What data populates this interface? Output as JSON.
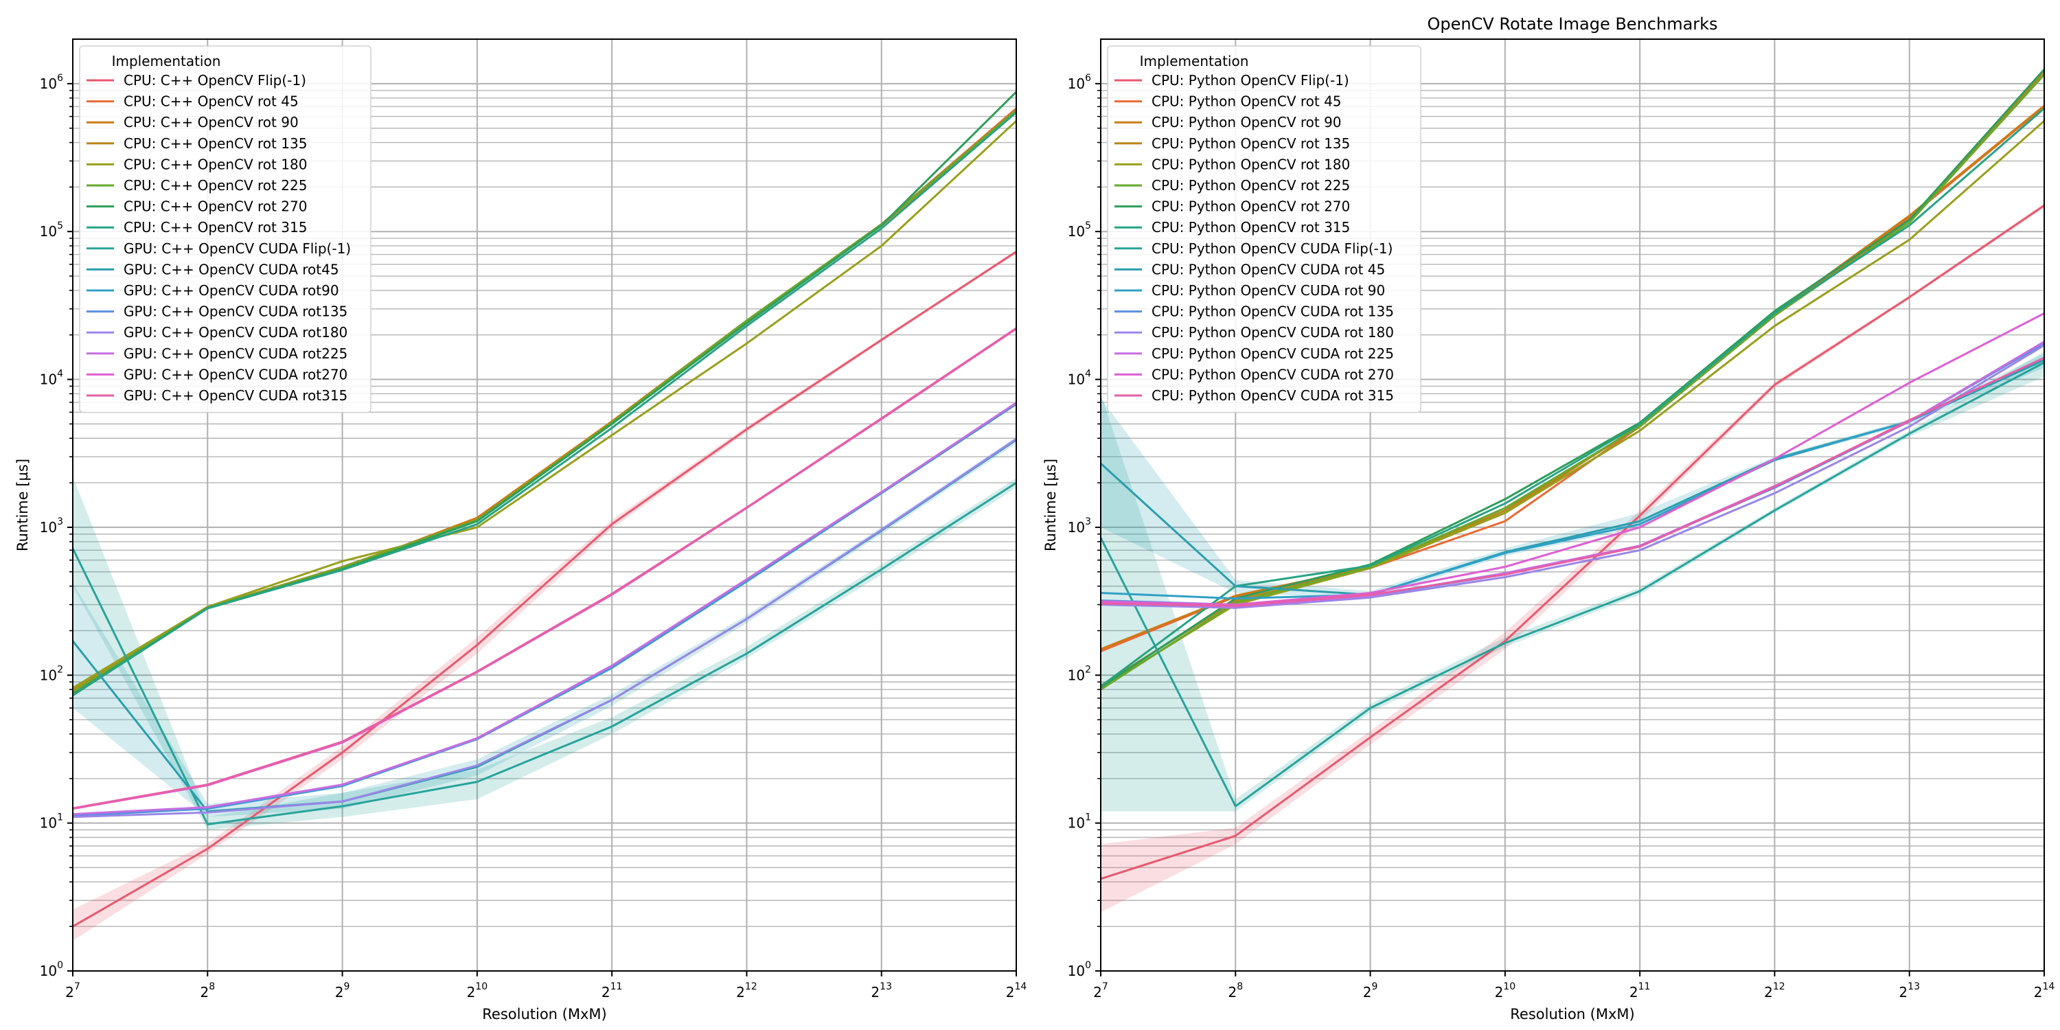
{
  "figure": {
    "title": "OpenCV Rotate Image Benchmarks"
  },
  "colors": {
    "cpu_flip": "#e8596f",
    "cpu_rot45": "#ea6a34",
    "cpu_rot90": "#cc7b16",
    "cpu_rot135": "#b8861e",
    "cpu_rot180": "#98a01c",
    "cpu_rot225": "#6aa82c",
    "cpu_rot270": "#2e9e5a",
    "cpu_rot315": "#28a383",
    "gpu_flip": "#28a39b",
    "gpu_rot45": "#2a9fae",
    "gpu_rot90": "#31a0c6",
    "gpu_rot135": "#5b8fe0",
    "gpu_rot180": "#9a85e8",
    "gpu_rot225": "#c66ee0",
    "gpu_rot270": "#de5fd3",
    "gpu_rot315": "#e65fa4"
  },
  "chart_data": [
    {
      "type": "line",
      "title": "",
      "xlabel": "Resolution (MxM)",
      "ylabel": "Runtime [µs]",
      "xscale": "log2",
      "yscale": "log10",
      "xlim": [
        128,
        16384
      ],
      "ylim": [
        1,
        2000000
      ],
      "x": [
        128,
        256,
        512,
        1024,
        2048,
        4096,
        8192,
        16384
      ],
      "x_tick_labels": [
        {
          "base": "2",
          "exp": "7"
        },
        {
          "base": "2",
          "exp": "8"
        },
        {
          "base": "2",
          "exp": "9"
        },
        {
          "base": "2",
          "exp": "10"
        },
        {
          "base": "2",
          "exp": "11"
        },
        {
          "base": "2",
          "exp": "12"
        },
        {
          "base": "2",
          "exp": "13"
        },
        {
          "base": "2",
          "exp": "14"
        }
      ],
      "y_tick_labels": [
        {
          "base": "10",
          "exp": "0",
          "value": 1
        },
        {
          "base": "10",
          "exp": "1",
          "value": 10
        },
        {
          "base": "10",
          "exp": "2",
          "value": 100
        },
        {
          "base": "10",
          "exp": "3",
          "value": 1000
        },
        {
          "base": "10",
          "exp": "4",
          "value": 10000
        },
        {
          "base": "10",
          "exp": "5",
          "value": 100000
        },
        {
          "base": "10",
          "exp": "6",
          "value": 1000000
        }
      ],
      "grid": true,
      "legend": {
        "title": "Implementation",
        "placement": "upper-left"
      },
      "series": [
        {
          "name": "CPU: C++ OpenCV Flip(-1)",
          "color_key": "cpu_flip",
          "values": [
            2.0,
            6.7,
            30,
            160,
            1050,
            4600,
            18500,
            73000
          ],
          "band": {
            "low": [
              1.6,
              6.2,
              27,
              140,
              980,
              4400,
              18000,
              71000
            ],
            "high": [
              2.6,
              7.3,
              33,
              180,
              1120,
              4800,
              19000,
              75000
            ]
          }
        },
        {
          "name": "CPU: C++ OpenCV rot 45",
          "color_key": "cpu_rot45",
          "values": [
            75,
            285,
            530,
            1130,
            5200,
            25000,
            112000,
            680000
          ]
        },
        {
          "name": "CPU: C++ OpenCV rot 90",
          "color_key": "cpu_rot90",
          "values": [
            76,
            285,
            525,
            1160,
            5200,
            25000,
            112000,
            660000
          ]
        },
        {
          "name": "CPU: C++ OpenCV rot 135",
          "color_key": "cpu_rot135",
          "values": [
            80,
            287,
            540,
            1120,
            5100,
            24500,
            110000,
            650000
          ]
        },
        {
          "name": "CPU: C++ OpenCV rot 180",
          "color_key": "cpu_rot180",
          "values": [
            82,
            290,
            590,
            1000,
            4200,
            17500,
            80000,
            560000
          ]
        },
        {
          "name": "CPU: C++ OpenCV rot 225",
          "color_key": "cpu_rot225",
          "values": [
            77,
            286,
            535,
            1120,
            5100,
            25000,
            112000,
            660000
          ]
        },
        {
          "name": "CPU: C++ OpenCV rot 270",
          "color_key": "cpu_rot270",
          "values": [
            74,
            284,
            520,
            1100,
            5000,
            24000,
            110000,
            880000
          ]
        },
        {
          "name": "CPU: C++ OpenCV rot 315",
          "color_key": "cpu_rot315",
          "values": [
            73,
            283,
            515,
            1050,
            4700,
            23000,
            105000,
            640000
          ]
        },
        {
          "name": "GPU: C++ OpenCV CUDA Flip(-1)",
          "color_key": "gpu_flip",
          "values": [
            720,
            9.8,
            13,
            19,
            45,
            140,
            520,
            2000
          ],
          "band": {
            "low": [
              400,
              9.0,
              11,
              14.5,
              40,
              130,
              480,
              1850
            ],
            "high": [
              2200,
              11,
              16,
              23,
              52,
              155,
              560,
              2150
            ]
          }
        },
        {
          "name": "GPU: C++ OpenCV CUDA rot45",
          "color_key": "gpu_rot45",
          "values": [
            170,
            12,
            14,
            24,
            68,
            240,
            950,
            3900
          ],
          "band": {
            "low": [
              60,
              11,
              12.5,
              21,
              62,
              225,
              900,
              3700
            ],
            "high": [
              420,
              13.5,
              16,
              27,
              74,
              255,
              1000,
              4100
            ]
          }
        },
        {
          "name": "GPU: C++ OpenCV CUDA rot90",
          "color_key": "gpu_rot90",
          "values": [
            11.2,
            12.5,
            17.8,
            37,
            112,
            430,
            1700,
            6800
          ]
        },
        {
          "name": "GPU: C++ OpenCV CUDA rot135",
          "color_key": "gpu_rot135",
          "values": [
            11.3,
            12.6,
            18,
            37,
            114,
            440,
            1720,
            6900
          ]
        },
        {
          "name": "GPU: C++ OpenCV CUDA rot180",
          "color_key": "gpu_rot180",
          "values": [
            11.0,
            11.8,
            14,
            24.5,
            68,
            240,
            960,
            3950
          ]
        },
        {
          "name": "GPU: C++ OpenCV CUDA rot225",
          "color_key": "gpu_rot225",
          "values": [
            11.5,
            12.8,
            18.2,
            37.5,
            116,
            445,
            1730,
            6950
          ]
        },
        {
          "name": "GPU: C++ OpenCV CUDA rot270",
          "color_key": "gpu_rot270",
          "values": [
            12.5,
            18,
            35,
            105,
            350,
            1350,
            5400,
            22000
          ]
        },
        {
          "name": "GPU: C++ OpenCV CUDA rot315",
          "color_key": "gpu_rot315",
          "values": [
            12.6,
            18.2,
            35.5,
            106,
            355,
            1360,
            5450,
            22200
          ]
        }
      ]
    },
    {
      "type": "line",
      "title": "OpenCV Rotate Image Benchmarks",
      "xlabel": "Resolution (MxM)",
      "ylabel": "Runtime [µs]",
      "xscale": "log2",
      "yscale": "log10",
      "xlim": [
        128,
        16384
      ],
      "ylim": [
        1,
        2000000
      ],
      "x": [
        128,
        256,
        512,
        1024,
        2048,
        4096,
        8192,
        16384
      ],
      "x_tick_labels": [
        {
          "base": "2",
          "exp": "7"
        },
        {
          "base": "2",
          "exp": "8"
        },
        {
          "base": "2",
          "exp": "9"
        },
        {
          "base": "2",
          "exp": "10"
        },
        {
          "base": "2",
          "exp": "11"
        },
        {
          "base": "2",
          "exp": "12"
        },
        {
          "base": "2",
          "exp": "13"
        },
        {
          "base": "2",
          "exp": "14"
        }
      ],
      "y_tick_labels": [
        {
          "base": "10",
          "exp": "0",
          "value": 1
        },
        {
          "base": "10",
          "exp": "1",
          "value": 10
        },
        {
          "base": "10",
          "exp": "2",
          "value": 100
        },
        {
          "base": "10",
          "exp": "3",
          "value": 1000
        },
        {
          "base": "10",
          "exp": "4",
          "value": 10000
        },
        {
          "base": "10",
          "exp": "5",
          "value": 100000
        },
        {
          "base": "10",
          "exp": "6",
          "value": 1000000
        }
      ],
      "grid": true,
      "legend": {
        "title": "Implementation",
        "placement": "upper-left"
      },
      "series": [
        {
          "name": "CPU: Python OpenCV Flip(-1)",
          "color_key": "cpu_flip",
          "values": [
            4.2,
            8.2,
            38,
            170,
            1200,
            9200,
            36000,
            150000
          ],
          "band": {
            "low": [
              2.5,
              7.2,
              34,
              150,
              1100,
              8800,
              35000,
              145000
            ],
            "high": [
              7.2,
              9.3,
              42,
              195,
              1300,
              9600,
              37000,
              155000
            ]
          }
        },
        {
          "name": "CPU: Python OpenCV rot 45",
          "color_key": "cpu_rot45",
          "values": [
            145,
            340,
            530,
            1100,
            4800,
            27000,
            125000,
            700000
          ]
        },
        {
          "name": "CPU: Python OpenCV rot 90",
          "color_key": "cpu_rot90",
          "values": [
            150,
            345,
            540,
            1250,
            4900,
            28000,
            128000,
            710000
          ]
        },
        {
          "name": "CPU: Python OpenCV rot 135",
          "color_key": "cpu_rot135",
          "values": [
            85,
            320,
            535,
            1300,
            4800,
            27000,
            120000,
            1200000
          ]
        },
        {
          "name": "CPU: Python OpenCV rot 180",
          "color_key": "cpu_rot180",
          "values": [
            82,
            300,
            530,
            1250,
            4500,
            23000,
            88000,
            560000
          ]
        },
        {
          "name": "CPU: Python OpenCV rot 225",
          "color_key": "cpu_rot225",
          "values": [
            80,
            310,
            540,
            1350,
            4800,
            27000,
            115000,
            1150000
          ]
        },
        {
          "name": "CPU: Python OpenCV rot 270",
          "color_key": "cpu_rot270",
          "values": [
            83,
            330,
            560,
            1550,
            5100,
            29000,
            120000,
            1250000
          ]
        },
        {
          "name": "CPU: Python OpenCV rot 315",
          "color_key": "cpu_rot315",
          "values": [
            84,
            400,
            550,
            1450,
            5000,
            28000,
            110000,
            680000
          ]
        },
        {
          "name": "CPU: Python OpenCV CUDA Flip(-1)",
          "color_key": "gpu_flip",
          "values": [
            850,
            13,
            60,
            165,
            370,
            1300,
            4300,
            13000
          ],
          "band": {
            "low": [
              12,
              12,
              56,
              155,
              350,
              1250,
              4100,
              10500
            ],
            "high": [
              8000,
              14.5,
              64,
              180,
              390,
              1350,
              4500,
              15500
            ]
          }
        },
        {
          "name": "CPU: Python OpenCV CUDA rot 45",
          "color_key": "gpu_rot45",
          "values": [
            2700,
            400,
            350,
            680,
            1100,
            2900,
            5200,
            13500
          ],
          "band": {
            "low": [
              1000,
              360,
              330,
              640,
              1000,
              2800,
              5000,
              12000
            ],
            "high": [
              7500,
              440,
              370,
              720,
              1250,
              3000,
              5400,
              15000
            ]
          }
        },
        {
          "name": "CPU: Python OpenCV CUDA rot 90",
          "color_key": "gpu_rot90",
          "values": [
            360,
            330,
            350,
            670,
            1050,
            2850,
            5200,
            14000
          ]
        },
        {
          "name": "CPU: Python OpenCV CUDA rot 135",
          "color_key": "gpu_rot135",
          "values": [
            320,
            300,
            345,
            480,
            750,
            1850,
            5200,
            17500
          ]
        },
        {
          "name": "CPU: Python OpenCV CUDA rot 180",
          "color_key": "gpu_rot180",
          "values": [
            300,
            285,
            335,
            460,
            700,
            1700,
            4800,
            17000
          ]
        },
        {
          "name": "CPU: Python OpenCV CUDA rot 225",
          "color_key": "gpu_rot225",
          "values": [
            310,
            290,
            345,
            490,
            750,
            1900,
            5200,
            18000
          ]
        },
        {
          "name": "CPU: Python OpenCV CUDA rot 270",
          "color_key": "gpu_rot270",
          "values": [
            315,
            300,
            360,
            540,
            1000,
            2900,
            9500,
            28000
          ]
        },
        {
          "name": "CPU: Python OpenCV CUDA rot 315",
          "color_key": "gpu_rot315",
          "values": [
            305,
            295,
            350,
            480,
            740,
            1880,
            5300,
            14000
          ]
        }
      ]
    }
  ]
}
